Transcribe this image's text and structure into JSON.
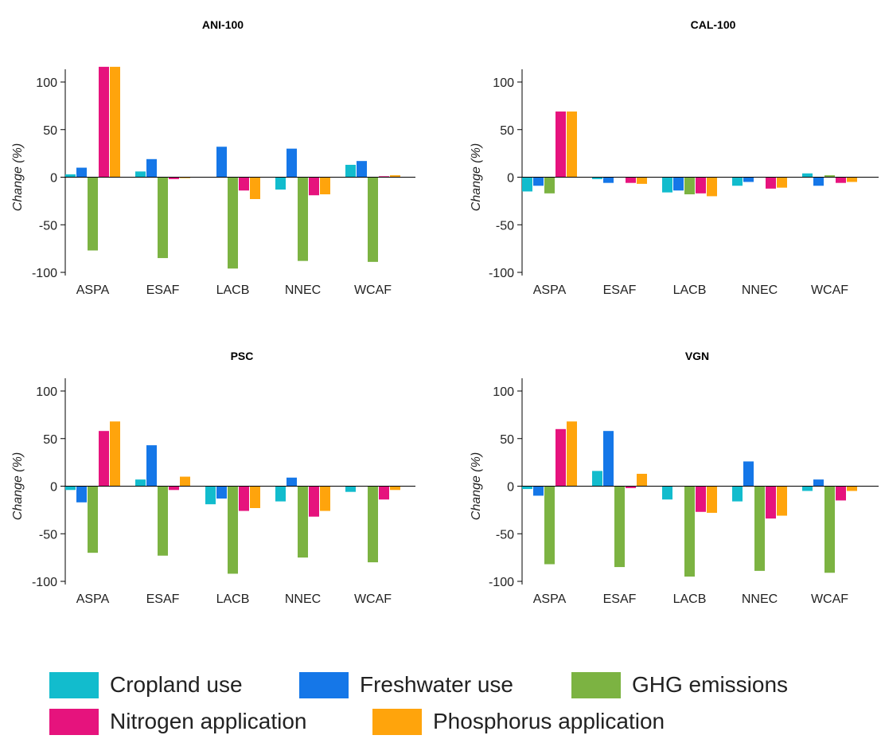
{
  "chart_data": [
    {
      "type": "bar",
      "title": "ANI-100",
      "ylabel": "Change (%)",
      "ylim": [
        -100,
        100
      ],
      "yticks": [
        -100,
        -50,
        0,
        50,
        100
      ],
      "categories": [
        "ASPA",
        "ESAF",
        "LACB",
        "NNEC",
        "WCAF"
      ],
      "series": [
        {
          "name": "Cropland use",
          "values": [
            3,
            6,
            0,
            -13,
            13
          ]
        },
        {
          "name": "Freshwater use",
          "values": [
            10,
            19,
            32,
            30,
            17
          ]
        },
        {
          "name": "GHG emissions",
          "values": [
            -77,
            -85,
            -96,
            -88,
            -89
          ]
        },
        {
          "name": "Nitrogen application",
          "values": [
            116,
            -2,
            -14,
            -19,
            1
          ]
        },
        {
          "name": "Phosphorus application",
          "values": [
            116,
            -1,
            -23,
            -18,
            2
          ]
        }
      ]
    },
    {
      "type": "bar",
      "title": "CAL-100",
      "ylabel": "Change (%)",
      "ylim": [
        -100,
        100
      ],
      "yticks": [
        -100,
        -50,
        0,
        50,
        100
      ],
      "categories": [
        "ASPA",
        "ESAF",
        "LACB",
        "NNEC",
        "WCAF"
      ],
      "series": [
        {
          "name": "Cropland use",
          "values": [
            -15,
            -2,
            -16,
            -9,
            4
          ]
        },
        {
          "name": "Freshwater use",
          "values": [
            -9,
            -6,
            -14,
            -5,
            -9
          ]
        },
        {
          "name": "GHG emissions",
          "values": [
            -17,
            0,
            -18,
            0,
            2
          ]
        },
        {
          "name": "Nitrogen application",
          "values": [
            69,
            -6,
            -17,
            -12,
            -6
          ]
        },
        {
          "name": "Phosphorus application",
          "values": [
            69,
            -7,
            -20,
            -11,
            -5
          ]
        }
      ]
    },
    {
      "type": "bar",
      "title": "PSC",
      "ylabel": "Change (%)",
      "ylim": [
        -100,
        100
      ],
      "yticks": [
        -100,
        -50,
        0,
        50,
        100
      ],
      "categories": [
        "ASPA",
        "ESAF",
        "LACB",
        "NNEC",
        "WCAF"
      ],
      "series": [
        {
          "name": "Cropland use",
          "values": [
            -4,
            7,
            -19,
            -16,
            -6
          ]
        },
        {
          "name": "Freshwater use",
          "values": [
            -17,
            43,
            -13,
            9,
            0
          ]
        },
        {
          "name": "GHG emissions",
          "values": [
            -70,
            -73,
            -92,
            -75,
            -80
          ]
        },
        {
          "name": "Nitrogen application",
          "values": [
            58,
            -4,
            -26,
            -32,
            -14
          ]
        },
        {
          "name": "Phosphorus application",
          "values": [
            68,
            10,
            -23,
            -26,
            -4
          ]
        }
      ]
    },
    {
      "type": "bar",
      "title": "VGN",
      "ylabel": "Change (%)",
      "ylim": [
        -100,
        100
      ],
      "yticks": [
        -100,
        -50,
        0,
        50,
        100
      ],
      "categories": [
        "ASPA",
        "ESAF",
        "LACB",
        "NNEC",
        "WCAF"
      ],
      "series": [
        {
          "name": "Cropland use",
          "values": [
            -3,
            16,
            -14,
            -16,
            -5
          ]
        },
        {
          "name": "Freshwater use",
          "values": [
            -10,
            58,
            0,
            26,
            7
          ]
        },
        {
          "name": "GHG emissions",
          "values": [
            -82,
            -85,
            -95,
            -89,
            -91
          ]
        },
        {
          "name": "Nitrogen application",
          "values": [
            60,
            -2,
            -27,
            -34,
            -15
          ]
        },
        {
          "name": "Phosphorus application",
          "values": [
            68,
            13,
            -28,
            -31,
            -5
          ]
        }
      ]
    }
  ],
  "legend": {
    "items": [
      {
        "label": "Cropland use",
        "color": "#12bccd"
      },
      {
        "label": "Freshwater use",
        "color": "#1577e8"
      },
      {
        "label": "GHG emissions",
        "color": "#7cb342"
      },
      {
        "label": "Nitrogen application",
        "color": "#e6137d"
      },
      {
        "label": "Phosphorus application",
        "color": "#ffa40c"
      }
    ]
  }
}
